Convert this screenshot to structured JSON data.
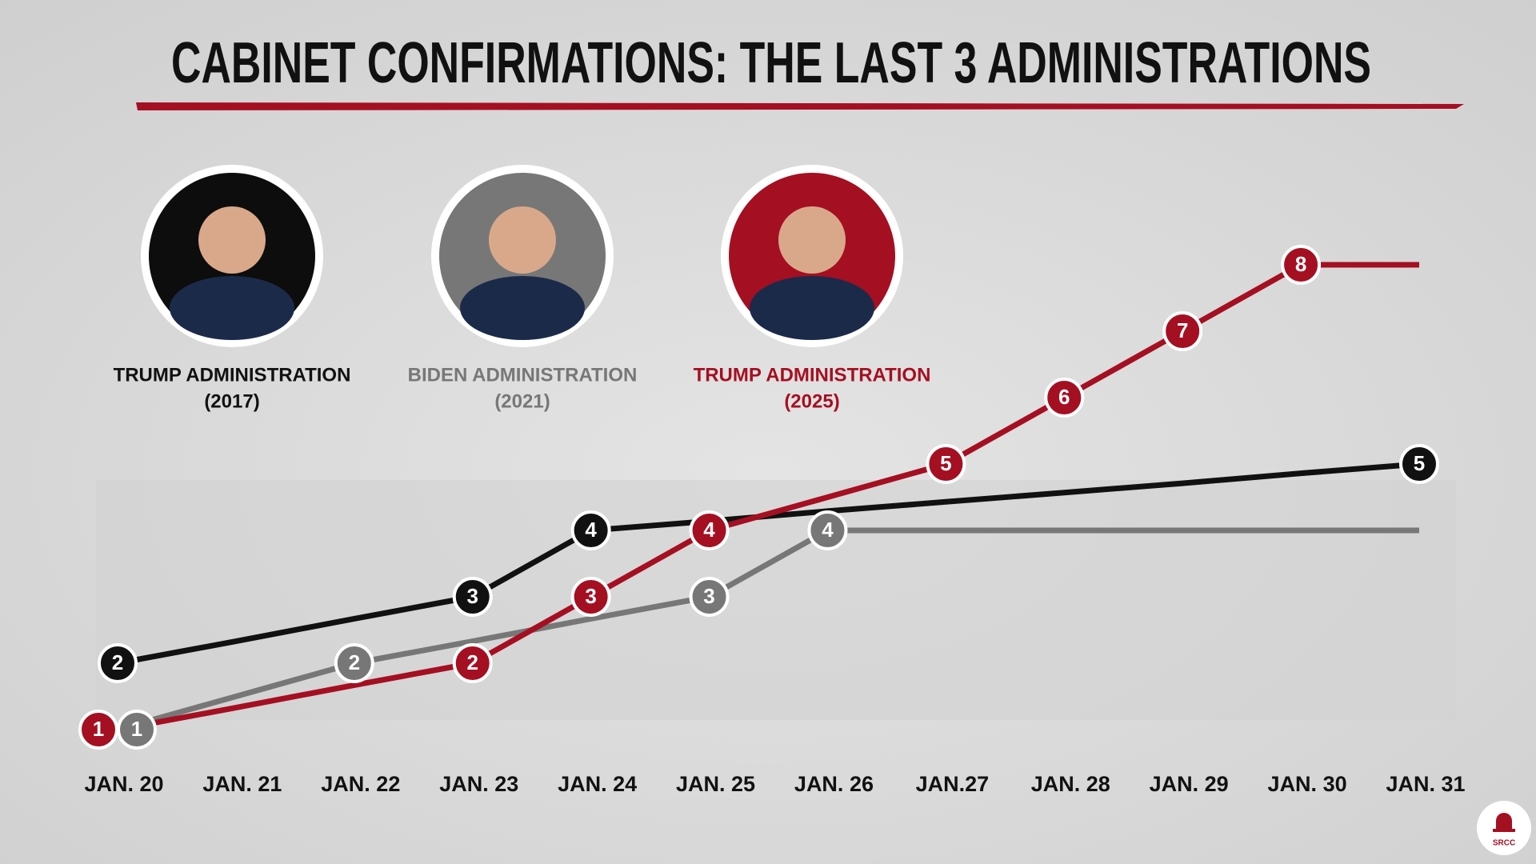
{
  "chart_data": {
    "type": "line",
    "title": "CABINET CONFIRMATIONS: THE LAST 3 ADMINISTRATIONS",
    "categories": [
      "JAN. 20",
      "JAN. 21",
      "JAN. 22",
      "JAN. 23",
      "JAN. 24",
      "JAN. 25",
      "JAN. 26",
      "JAN.27",
      "JAN. 28",
      "JAN. 29",
      "JAN. 30",
      "JAN. 31"
    ],
    "series": [
      {
        "name": "TRUMP ADMINISTRATION",
        "period": "(2017)",
        "color": "#111111",
        "values": [
          2,
          2.33,
          2.67,
          3,
          4,
          4.14,
          4.29,
          4.43,
          4.57,
          4.71,
          4.86,
          5
        ],
        "value_labels": [
          "2",
          null,
          null,
          "3",
          "4",
          null,
          null,
          null,
          null,
          null,
          null,
          "5"
        ]
      },
      {
        "name": "BIDEN ADMINISTRATION",
        "period": "(2021)",
        "color": "#777777",
        "values": [
          1,
          1.5,
          2,
          2.33,
          2.67,
          3,
          4,
          4,
          4,
          4,
          4,
          4
        ],
        "value_labels": [
          "1",
          null,
          "2",
          null,
          null,
          "3",
          "4",
          null,
          null,
          null,
          null,
          null
        ]
      },
      {
        "name": "TRUMP ADMINISTRATION",
        "period": "(2025)",
        "color": "#a50f22",
        "values": [
          1,
          1.33,
          1.67,
          2,
          3,
          4,
          4.5,
          5,
          6,
          7,
          8,
          8
        ],
        "value_labels": [
          "1",
          null,
          null,
          "2",
          "3",
          "4",
          null,
          "5",
          "6",
          "7",
          "8",
          null
        ]
      }
    ],
    "logo_text": "SRCC"
  }
}
